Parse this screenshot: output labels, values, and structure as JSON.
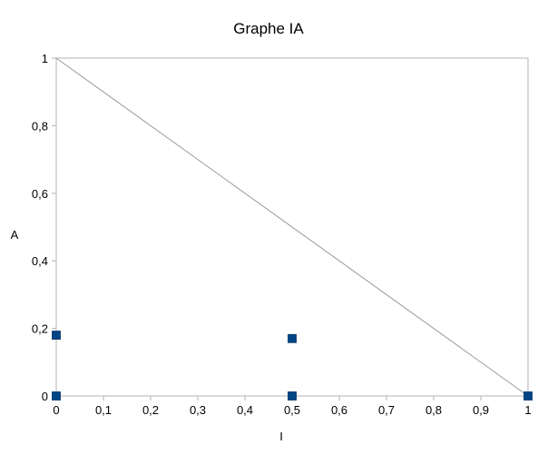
{
  "chart_data": {
    "type": "scatter",
    "title": "Graphe IA",
    "xlabel": "I",
    "ylabel": "A",
    "xlim": [
      0,
      1
    ],
    "ylim": [
      0,
      1
    ],
    "x_ticks": [
      "0",
      "0,1",
      "0,2",
      "0,3",
      "0,4",
      "0,5",
      "0,6",
      "0,7",
      "0,8",
      "0,9",
      "1"
    ],
    "y_ticks": [
      "0",
      "0,2",
      "0,4",
      "0,6",
      "0,8",
      "1"
    ],
    "grid": false,
    "legend": "none",
    "reference_line": {
      "from": [
        0,
        1
      ],
      "to": [
        1,
        0
      ],
      "color": "#999999"
    },
    "marker_color": "#004586",
    "points": [
      {
        "x": 0,
        "y": 0.18
      },
      {
        "x": 0,
        "y": 0
      },
      {
        "x": 0.5,
        "y": 0.17
      },
      {
        "x": 0.5,
        "y": 0
      },
      {
        "x": 1,
        "y": 0
      }
    ]
  }
}
